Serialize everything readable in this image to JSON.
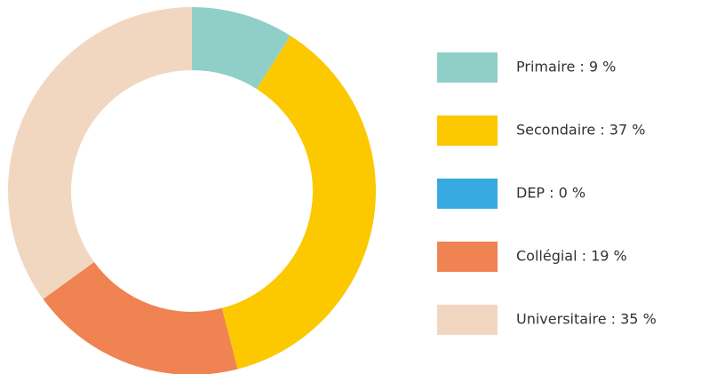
{
  "chart_data": {
    "type": "donut",
    "values": [
      9,
      37,
      0,
      19,
      35
    ],
    "value_labels": [
      "Primaire : 9 %",
      "Secondaire : 37 %",
      "DEP : 0 %",
      "Collégial : 19 %",
      "Universitaire : 35 %"
    ],
    "colors": [
      "#90cfc8",
      "#fcc800",
      "#38a9e0",
      "#ef8352",
      "#f2d7c0"
    ]
  }
}
